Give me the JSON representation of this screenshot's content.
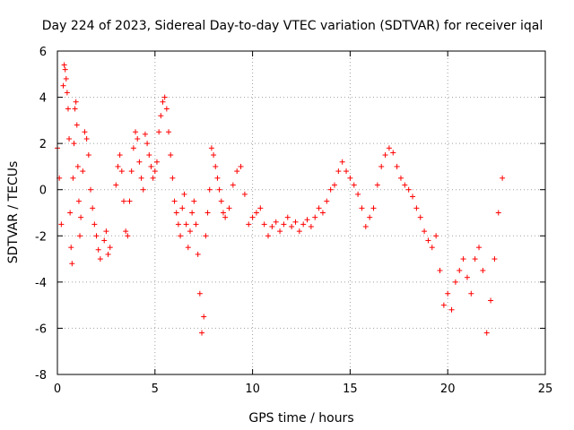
{
  "chart_data": {
    "type": "scatter",
    "title": "Day 224 of 2023, Sidereal Day-to-day VTEC variation (SDTVAR) for receiver iqal",
    "xlabel": "GPS time / hours",
    "ylabel": "SDTVAR / TECUs",
    "xlim": [
      0,
      25
    ],
    "ylim": [
      -8,
      6
    ],
    "xticks": [
      0,
      5,
      10,
      15,
      20,
      25
    ],
    "yticks": [
      -8,
      -6,
      -4,
      -2,
      0,
      2,
      4,
      6
    ],
    "grid": true,
    "marker": "+",
    "color": "#ff0000",
    "series": [
      {
        "name": "SDTVAR",
        "x": [
          0.0,
          0.1,
          0.2,
          0.3,
          0.35,
          0.4,
          0.45,
          0.5,
          0.55,
          0.6,
          0.65,
          0.7,
          0.75,
          0.8,
          0.85,
          0.9,
          0.95,
          1.0,
          1.05,
          1.1,
          1.15,
          1.2,
          1.3,
          1.4,
          1.5,
          1.6,
          1.7,
          1.8,
          1.9,
          2.0,
          2.1,
          2.2,
          2.4,
          2.5,
          2.6,
          2.7,
          3.0,
          3.1,
          3.2,
          3.3,
          3.4,
          3.5,
          3.6,
          3.7,
          3.8,
          3.9,
          4.0,
          4.1,
          4.2,
          4.3,
          4.4,
          4.5,
          4.6,
          4.7,
          4.8,
          4.9,
          5.0,
          5.1,
          5.2,
          5.3,
          5.4,
          5.5,
          5.6,
          5.7,
          5.8,
          5.9,
          6.0,
          6.1,
          6.2,
          6.3,
          6.4,
          6.5,
          6.6,
          6.7,
          6.8,
          6.9,
          7.0,
          7.1,
          7.2,
          7.3,
          7.4,
          7.5,
          7.6,
          7.7,
          7.8,
          7.9,
          8.0,
          8.1,
          8.2,
          8.3,
          8.4,
          8.5,
          8.6,
          8.8,
          9.0,
          9.2,
          9.4,
          9.6,
          9.8,
          10.0,
          10.2,
          10.4,
          10.6,
          10.8,
          11.0,
          11.2,
          11.4,
          11.6,
          11.8,
          12.0,
          12.2,
          12.4,
          12.6,
          12.8,
          13.0,
          13.2,
          13.4,
          13.6,
          13.8,
          14.0,
          14.2,
          14.4,
          14.6,
          14.8,
          15.0,
          15.2,
          15.4,
          15.6,
          15.8,
          16.0,
          16.2,
          16.4,
          16.6,
          16.8,
          17.0,
          17.2,
          17.4,
          17.6,
          17.8,
          18.0,
          18.2,
          18.4,
          18.6,
          18.8,
          19.0,
          19.2,
          19.4,
          19.6,
          19.8,
          20.0,
          20.2,
          20.4,
          20.6,
          20.8,
          21.0,
          21.2,
          21.4,
          21.6,
          21.8,
          22.0,
          22.2,
          22.4,
          22.6,
          22.8
        ],
        "y": [
          1.8,
          0.5,
          -1.5,
          4.5,
          5.4,
          5.2,
          4.8,
          4.2,
          3.5,
          2.2,
          -1.0,
          -2.5,
          -3.2,
          0.5,
          2.0,
          3.5,
          3.8,
          2.8,
          1.0,
          -0.5,
          -2.0,
          -1.2,
          0.8,
          2.5,
          2.2,
          1.5,
          0.0,
          -0.8,
          -1.5,
          -2.0,
          -2.6,
          -3.0,
          -2.2,
          -1.8,
          -2.8,
          -2.5,
          0.2,
          1.0,
          1.5,
          0.8,
          -0.5,
          -1.8,
          -2.0,
          -0.5,
          0.8,
          1.8,
          2.5,
          2.2,
          1.2,
          0.5,
          0.0,
          2.4,
          2.0,
          1.5,
          1.0,
          0.5,
          0.8,
          1.2,
          2.5,
          3.2,
          3.8,
          4.0,
          3.5,
          2.5,
          1.5,
          0.5,
          -0.5,
          -1.0,
          -1.5,
          -2.0,
          -0.8,
          -0.2,
          -1.5,
          -2.5,
          -1.8,
          -1.0,
          -0.5,
          -1.5,
          -2.8,
          -4.5,
          -6.2,
          -5.5,
          -2.0,
          -1.0,
          0.0,
          1.8,
          1.5,
          1.0,
          0.5,
          0.0,
          -0.5,
          -1.0,
          -1.2,
          -0.8,
          0.2,
          0.8,
          1.0,
          -0.2,
          -1.5,
          -1.2,
          -1.0,
          -0.8,
          -1.5,
          -2.0,
          -1.6,
          -1.4,
          -1.8,
          -1.5,
          -1.2,
          -1.6,
          -1.4,
          -1.8,
          -1.5,
          -1.3,
          -1.6,
          -1.2,
          -0.8,
          -1.0,
          -0.5,
          0.0,
          0.2,
          0.8,
          1.2,
          0.8,
          0.5,
          0.2,
          -0.2,
          -0.8,
          -1.6,
          -1.2,
          -0.8,
          0.2,
          1.0,
          1.5,
          1.8,
          1.6,
          1.0,
          0.5,
          0.2,
          0.0,
          -0.3,
          -0.8,
          -1.2,
          -1.8,
          -2.2,
          -2.5,
          -2.0,
          -3.5,
          -5.0,
          -4.5,
          -5.2,
          -4.0,
          -3.5,
          -3.0,
          -3.8,
          -4.5,
          -3.0,
          -2.5,
          -3.5,
          -6.2,
          -4.8,
          -3.0,
          -1.0,
          0.5
        ]
      }
    ]
  }
}
